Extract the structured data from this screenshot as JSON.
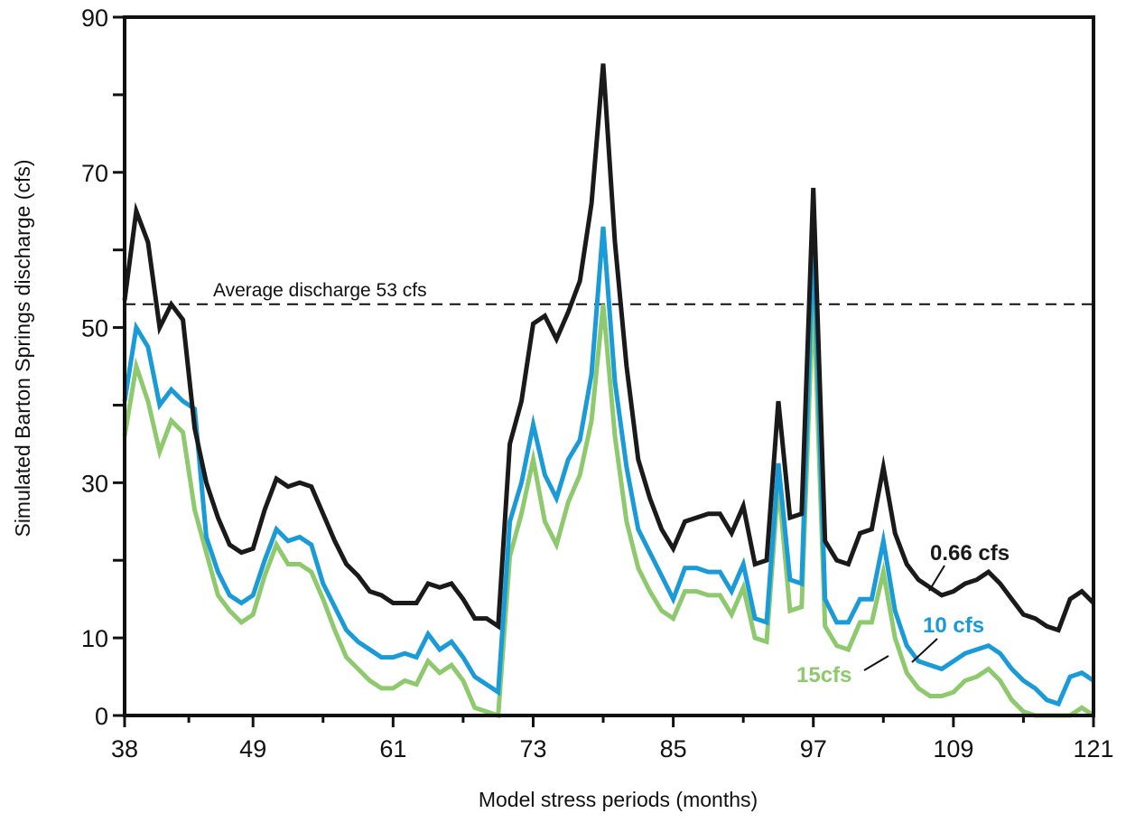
{
  "chart_data": {
    "type": "line",
    "title": "",
    "xlabel": "Model stress periods (months)",
    "ylabel": "Simulated Barton Springs discharge (cfs)",
    "xlim": [
      38,
      121
    ],
    "ylim": [
      0,
      90
    ],
    "xticks": [
      38,
      49,
      61,
      73,
      85,
      97,
      109,
      121
    ],
    "yticks": [
      0,
      10,
      30,
      50,
      70,
      90
    ],
    "grid": false,
    "legend": "inline labels near lines",
    "reference_line": {
      "y": 53,
      "label": "Average discharge 53 cfs",
      "style": "dashed"
    },
    "x": [
      38,
      39,
      40,
      41,
      42,
      43,
      44,
      45,
      46,
      47,
      48,
      49,
      50,
      51,
      52,
      53,
      54,
      55,
      56,
      57,
      58,
      59,
      60,
      61,
      62,
      63,
      64,
      65,
      66,
      67,
      68,
      69,
      70,
      71,
      72,
      73,
      74,
      75,
      76,
      77,
      78,
      79,
      80,
      81,
      82,
      83,
      84,
      85,
      86,
      87,
      88,
      89,
      90,
      91,
      92,
      93,
      94,
      95,
      96,
      97,
      98,
      99,
      100,
      101,
      102,
      103,
      104,
      105,
      106,
      107,
      108,
      109,
      110,
      111,
      112,
      113,
      114,
      115,
      116,
      117,
      118,
      119,
      120,
      121
    ],
    "series": [
      {
        "name": "0.66 cfs",
        "color": "#1a1a1a",
        "values": [
          53.5,
          65,
          61,
          50,
          53,
          51,
          37,
          30,
          25.5,
          22,
          21,
          21.5,
          26.5,
          30.5,
          29.5,
          30,
          29.5,
          26,
          22.5,
          19.5,
          18,
          16,
          15.5,
          14.5,
          14.5,
          14.5,
          17,
          16.5,
          17,
          15,
          12.5,
          12.5,
          11.5,
          35,
          40.5,
          50.5,
          51.5,
          48.5,
          52,
          56,
          66,
          84,
          61,
          45,
          33,
          28,
          24,
          21.5,
          25,
          25.5,
          26,
          26,
          23.5,
          27,
          19.5,
          20,
          40.5,
          25.5,
          26,
          68,
          22.5,
          20,
          19.5,
          23.5,
          24,
          32,
          23.5,
          19.5,
          17.5,
          16.5,
          15.5,
          16,
          17,
          17.5,
          18.5,
          17,
          15,
          13,
          12.5,
          11.5,
          11,
          15,
          16,
          14.5
        ]
      },
      {
        "name": "10 cfs",
        "color": "#1a9ad6",
        "values": [
          40.5,
          50,
          47.5,
          40,
          42,
          40.5,
          39.5,
          23,
          18.5,
          15.5,
          14.5,
          15.5,
          20,
          24,
          22.5,
          23,
          22,
          17,
          14,
          11,
          9.5,
          8.5,
          7.5,
          7.5,
          8,
          7.5,
          10.5,
          8.5,
          9.5,
          7.5,
          5,
          4,
          3,
          25,
          30,
          37.5,
          31,
          28,
          33,
          35.5,
          44,
          63,
          43,
          32,
          24,
          21,
          18,
          15,
          19,
          19,
          18.5,
          18.5,
          16,
          19.5,
          12.5,
          12,
          32.5,
          17.5,
          17,
          62.5,
          15,
          12,
          12,
          15,
          15,
          22.5,
          13.5,
          9,
          7,
          6.5,
          6,
          7,
          8,
          8.5,
          9,
          8,
          6,
          4.5,
          3.5,
          2,
          1.5,
          5,
          5.5,
          4.5
        ]
      },
      {
        "name": "15cfs",
        "color": "#8ec96e",
        "values": [
          36,
          45,
          40.5,
          34,
          38,
          36.5,
          26.5,
          21,
          15.5,
          13.5,
          12,
          13,
          18,
          22,
          19.5,
          19.5,
          18.5,
          15,
          11,
          7.5,
          6,
          4.5,
          3.5,
          3.5,
          4.5,
          4,
          7,
          5.5,
          6.5,
          4.5,
          1,
          0.5,
          0,
          20.5,
          26,
          33,
          25,
          22,
          27.5,
          31,
          38,
          53,
          36,
          25,
          19,
          16,
          13.5,
          12.5,
          16,
          16,
          15.5,
          15.5,
          13,
          16.5,
          10,
          9.5,
          30,
          13.5,
          14,
          55,
          11.5,
          9,
          8.5,
          12,
          12,
          18.5,
          10,
          5.5,
          3.5,
          2.5,
          2.5,
          3,
          4.5,
          5,
          6,
          4.5,
          2,
          0.5,
          0,
          0,
          0,
          0,
          1,
          0
        ]
      }
    ]
  }
}
